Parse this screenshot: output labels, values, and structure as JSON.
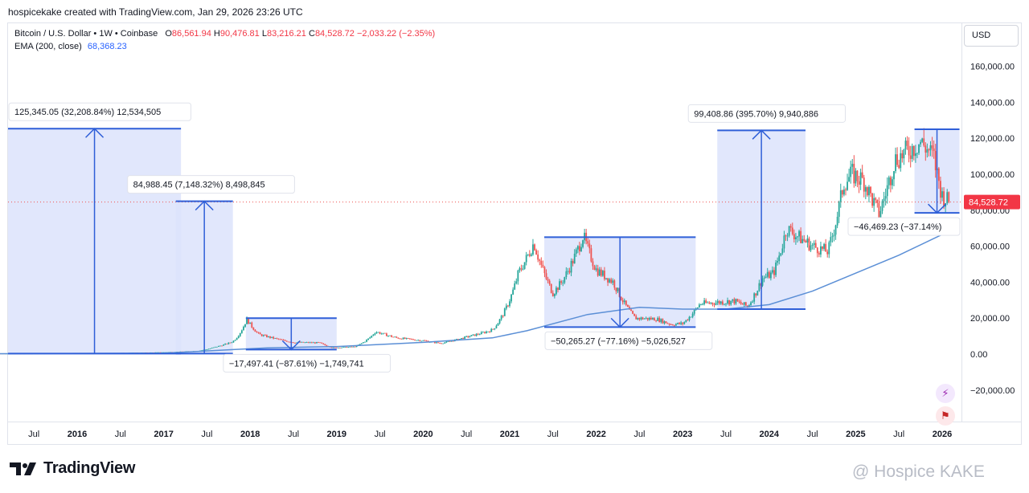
{
  "header": {
    "caption": "hospicekake created with TradingView.com, Jan 29, 2026 23:26 UTC"
  },
  "legend": {
    "symbol": "Bitcoin / U.S. Dollar • 1W • Coinbase",
    "o_label": "O",
    "o_value": "86,561.94",
    "h_label": "H",
    "h_value": "90,476.81",
    "l_label": "L",
    "l_value": "83,216.21",
    "c_label": "C",
    "c_value": "84,528.72",
    "change": "−2,033.22 (−2.35%)",
    "ema_label": "EMA (200, close)",
    "ema_value": "68,368.23"
  },
  "currency": "USD",
  "colors": {
    "up": "#26a69a",
    "down": "#ef5350",
    "ema": "#5b8fd6",
    "measure_fill": "#dce3fb",
    "measure_line": "#2f5fd8",
    "last_price_bg": "#f23645"
  },
  "chart_data": {
    "type": "candlestick",
    "title": "Bitcoin / U.S. Dollar • 1W • Coinbase",
    "interval": "1W",
    "y_axis": {
      "ticks": [
        "160,000.00",
        "140,000.00",
        "120,000.00",
        "100,000.00",
        "80,000.00",
        "60,000.00",
        "40,000.00",
        "20,000.00",
        "0.00",
        "−20,000.00"
      ],
      "range": [
        -38000,
        175000
      ],
      "grid": false
    },
    "x_axis": {
      "ticks": [
        {
          "label": "Jul",
          "year": false,
          "t": 2015.5
        },
        {
          "label": "2016",
          "year": true,
          "t": 2016.0
        },
        {
          "label": "Jul",
          "year": false,
          "t": 2016.5
        },
        {
          "label": "2017",
          "year": true,
          "t": 2017.0
        },
        {
          "label": "Jul",
          "year": false,
          "t": 2017.5
        },
        {
          "label": "2018",
          "year": true,
          "t": 2018.0
        },
        {
          "label": "Jul",
          "year": false,
          "t": 2018.5
        },
        {
          "label": "2019",
          "year": true,
          "t": 2019.0
        },
        {
          "label": "Jul",
          "year": false,
          "t": 2019.5
        },
        {
          "label": "2020",
          "year": true,
          "t": 2020.0
        },
        {
          "label": "Jul",
          "year": false,
          "t": 2020.5
        },
        {
          "label": "2021",
          "year": true,
          "t": 2021.0
        },
        {
          "label": "Jul",
          "year": false,
          "t": 2021.5
        },
        {
          "label": "2022",
          "year": true,
          "t": 2022.0
        },
        {
          "label": "Jul",
          "year": false,
          "t": 2022.5
        },
        {
          "label": "2023",
          "year": true,
          "t": 2023.0
        },
        {
          "label": "Jul",
          "year": false,
          "t": 2023.5
        },
        {
          "label": "2024",
          "year": true,
          "t": 2024.0
        },
        {
          "label": "Jul",
          "year": false,
          "t": 2024.5
        },
        {
          "label": "2025",
          "year": true,
          "t": 2025.0
        },
        {
          "label": "Jul",
          "year": false,
          "t": 2025.5
        },
        {
          "label": "2026",
          "year": true,
          "t": 2026.0
        }
      ]
    },
    "price_path": [
      [
        2015.0,
        250
      ],
      [
        2016.0,
        430
      ],
      [
        2016.5,
        650
      ],
      [
        2017.0,
        1000
      ],
      [
        2017.4,
        1800
      ],
      [
        2017.6,
        4000
      ],
      [
        2017.8,
        7000
      ],
      [
        2017.96,
        19500
      ],
      [
        2018.1,
        11000
      ],
      [
        2018.3,
        8500
      ],
      [
        2018.5,
        6500
      ],
      [
        2018.8,
        6300
      ],
      [
        2018.96,
        3500
      ],
      [
        2019.2,
        4000
      ],
      [
        2019.45,
        12500
      ],
      [
        2019.7,
        9000
      ],
      [
        2020.0,
        7500
      ],
      [
        2020.2,
        6000
      ],
      [
        2020.5,
        9500
      ],
      [
        2020.8,
        13500
      ],
      [
        2020.99,
        29000
      ],
      [
        2021.1,
        45000
      ],
      [
        2021.28,
        62000
      ],
      [
        2021.5,
        34000
      ],
      [
        2021.6,
        40000
      ],
      [
        2021.85,
        66000
      ],
      [
        2022.0,
        47000
      ],
      [
        2022.2,
        40000
      ],
      [
        2022.45,
        20000
      ],
      [
        2022.7,
        19500
      ],
      [
        2022.87,
        16500
      ],
      [
        2023.0,
        17000
      ],
      [
        2023.2,
        28000
      ],
      [
        2023.6,
        29500
      ],
      [
        2023.75,
        26500
      ],
      [
        2023.92,
        42000
      ],
      [
        2024.05,
        45000
      ],
      [
        2024.2,
        70000
      ],
      [
        2024.5,
        60000
      ],
      [
        2024.68,
        57000
      ],
      [
        2024.86,
        95000
      ],
      [
        2024.96,
        100000
      ],
      [
        2025.1,
        96000
      ],
      [
        2025.27,
        78000
      ],
      [
        2025.45,
        108000
      ],
      [
        2025.75,
        118000
      ],
      [
        2025.9,
        110000
      ],
      [
        2026.0,
        88000
      ],
      [
        2026.08,
        84528.72
      ]
    ],
    "ema_path": [
      [
        2015.0,
        200
      ],
      [
        2017.0,
        500
      ],
      [
        2017.8,
        2500
      ],
      [
        2018.2,
        3500
      ],
      [
        2019.0,
        4200
      ],
      [
        2020.0,
        6500
      ],
      [
        2020.8,
        9000
      ],
      [
        2021.2,
        13000
      ],
      [
        2021.9,
        22000
      ],
      [
        2022.5,
        26000
      ],
      [
        2023.0,
        25000
      ],
      [
        2023.5,
        25000
      ],
      [
        2024.0,
        27500
      ],
      [
        2024.5,
        35000
      ],
      [
        2025.0,
        45000
      ],
      [
        2025.5,
        55000
      ],
      [
        2026.08,
        68368.23
      ]
    ],
    "last_price": 84528.72,
    "last_price_label": "84,528.72",
    "ema_current": 68368.23,
    "measurements": [
      {
        "label": "125,345.05 (32,208.84%) 12,534,505",
        "t_start": 2015.0,
        "t_end": 2017.2,
        "p_from": 300,
        "p_to": 125345,
        "direction": "up",
        "label_pos": "top"
      },
      {
        "label": "84,988.45 (7,148.32%) 8,498,845",
        "t_start": 2017.14,
        "t_end": 2017.8,
        "p_from": 300,
        "p_to": 84988,
        "direction": "up",
        "label_pos": "top"
      },
      {
        "label": "−17,497.41 (−87.61%) −1,749,741",
        "t_start": 2017.95,
        "t_end": 2019.0,
        "p_from": 20000,
        "p_to": 2500,
        "direction": "down",
        "label_pos": "bottom"
      },
      {
        "label": "−50,265.27 (−77.16%) −5,026,527",
        "t_start": 2021.4,
        "t_end": 2023.15,
        "p_from": 65000,
        "p_to": 15000,
        "direction": "down",
        "label_pos": "bottom"
      },
      {
        "label": "99,408.86 (395.70%) 9,940,886",
        "t_start": 2023.4,
        "t_end": 2024.42,
        "p_from": 25000,
        "p_to": 124408,
        "direction": "up",
        "label_pos": "top"
      },
      {
        "label": "−46,469.23 (−37.14%)",
        "t_start": 2025.68,
        "t_end": 2026.2,
        "p_from": 125000,
        "p_to": 78500,
        "direction": "down",
        "label_pos": "bottom"
      }
    ]
  },
  "footer": {
    "logo_mark": "TV",
    "logo_text": "TradingView",
    "watermark": "@ Hospice KAKE"
  }
}
